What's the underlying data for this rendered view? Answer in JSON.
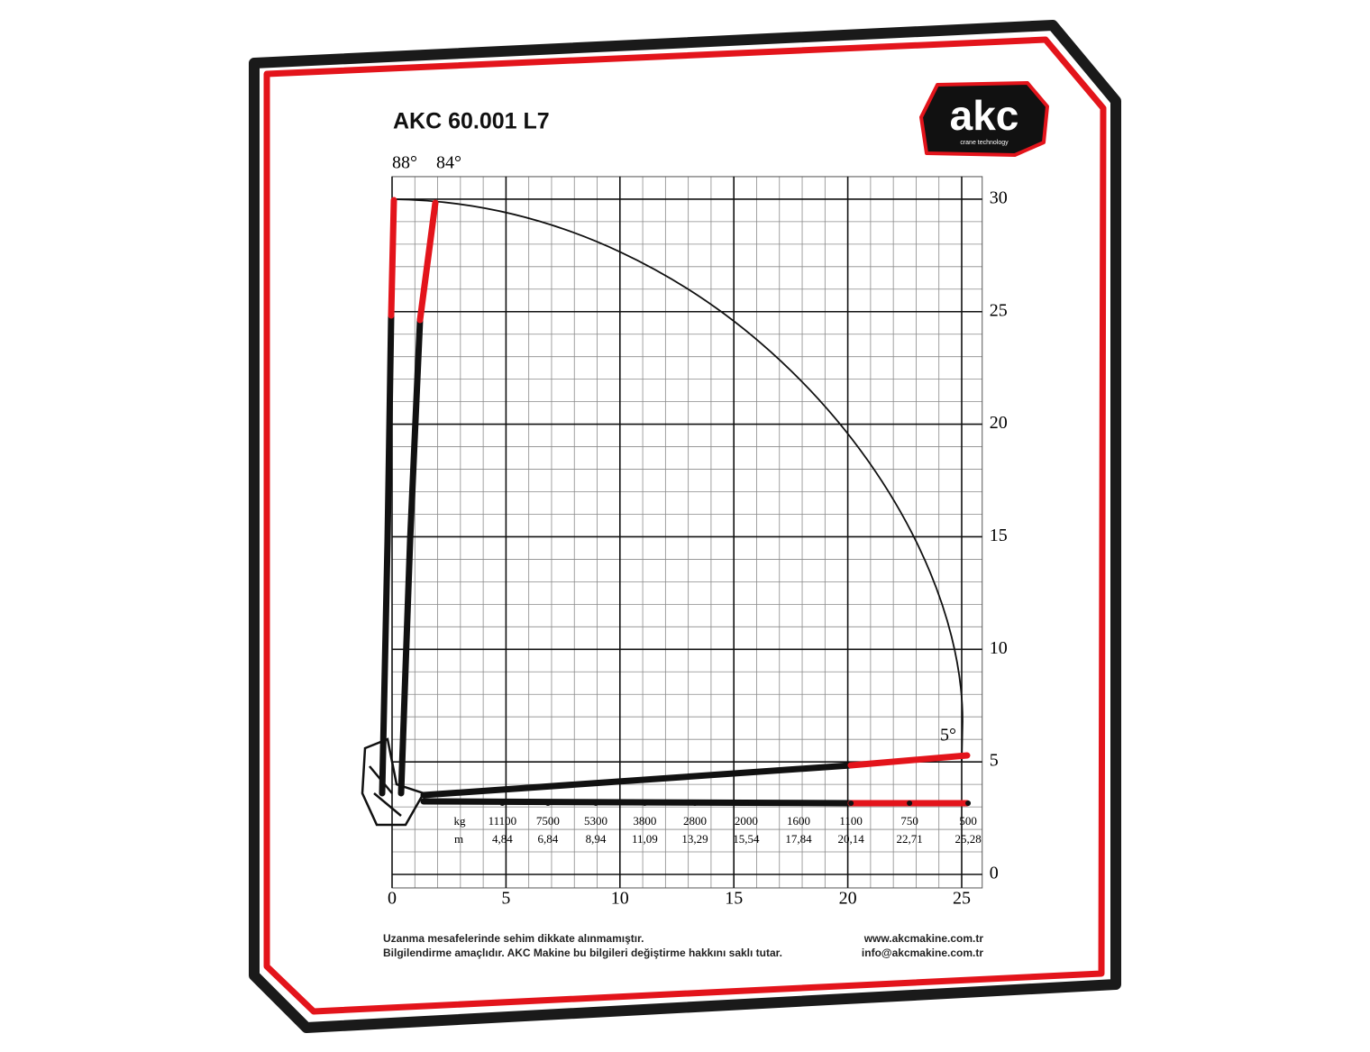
{
  "chart_data": {
    "type": "load-chart",
    "title": "AKC 60.001 L7",
    "logo": {
      "name": "akc",
      "tagline": "crane technology"
    },
    "boom_angles": [
      "88°",
      "84°",
      "5°"
    ],
    "xlim": [
      0,
      25.9
    ],
    "ylim": [
      -0.6,
      31
    ],
    "xticks": [
      0,
      5,
      10,
      15,
      20,
      25
    ],
    "yticks": [
      0,
      5,
      10,
      15,
      20,
      25,
      30
    ],
    "grid": true,
    "series": [
      {
        "name": "kg",
        "values": [
          11100,
          7500,
          5300,
          3800,
          2800,
          2000,
          1600,
          1100,
          750,
          500
        ]
      },
      {
        "name": "m",
        "values": [
          4.84,
          6.84,
          8.94,
          11.09,
          13.29,
          15.54,
          17.84,
          20.14,
          22.71,
          25.28
        ],
        "value_labels": [
          "4,84",
          "6,84",
          "8,94",
          "11,09",
          "13,29",
          "15,54",
          "17,84",
          "20,14",
          "22,71",
          "25,28"
        ]
      }
    ],
    "notes": [
      "Uzanma mesafelerinde sehim dikkate alınmamıştır.",
      "Bilgilendirme amaçlıdır. AKC Makine bu bilgileri değiştirme hakkını saklı tutar."
    ],
    "contact": [
      "www.akcmakine.com.tr",
      "info@akcmakine.com.tr"
    ]
  }
}
